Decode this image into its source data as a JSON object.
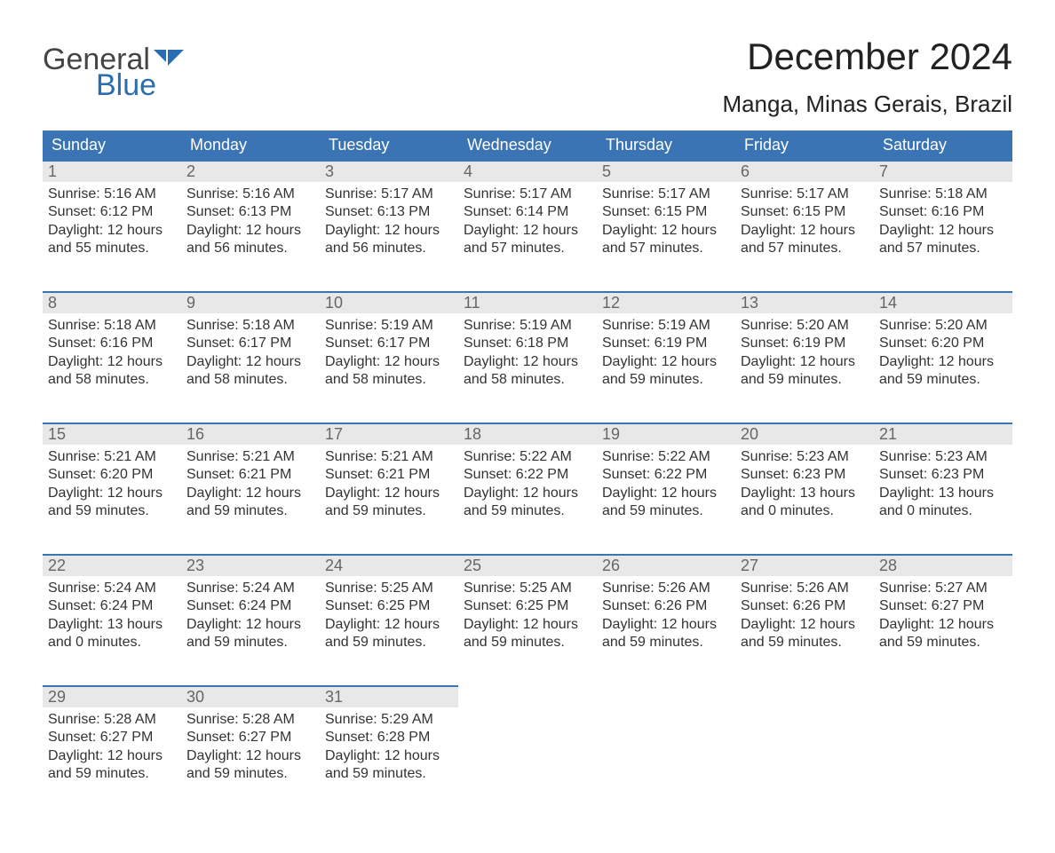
{
  "logo": {
    "word1": "General",
    "word2": "Blue",
    "flag_color": "#2a6db0",
    "text_color_1": "#444444",
    "text_color_2": "#2a6db0"
  },
  "header": {
    "month_title": "December 2024",
    "location": "Manga, Minas Gerais, Brazil"
  },
  "colors": {
    "header_bg": "#3a74b4",
    "header_fg": "#ffffff",
    "daynum_bg": "#e8e8e8",
    "daynum_fg": "#666666",
    "row_border": "#3a74b4",
    "body_text": "#333333"
  },
  "weekdays": [
    "Sunday",
    "Monday",
    "Tuesday",
    "Wednesday",
    "Thursday",
    "Friday",
    "Saturday"
  ],
  "labels": {
    "sunrise": "Sunrise:",
    "sunset": "Sunset:",
    "daylight_prefix": "Daylight:",
    "hours_word": "hours",
    "and_word": "and",
    "minutes_suffix": "minutes."
  },
  "days": [
    {
      "n": 1,
      "sunrise": "5:16 AM",
      "sunset": "6:12 PM",
      "dl_h": 12,
      "dl_m": 55
    },
    {
      "n": 2,
      "sunrise": "5:16 AM",
      "sunset": "6:13 PM",
      "dl_h": 12,
      "dl_m": 56
    },
    {
      "n": 3,
      "sunrise": "5:17 AM",
      "sunset": "6:13 PM",
      "dl_h": 12,
      "dl_m": 56
    },
    {
      "n": 4,
      "sunrise": "5:17 AM",
      "sunset": "6:14 PM",
      "dl_h": 12,
      "dl_m": 57
    },
    {
      "n": 5,
      "sunrise": "5:17 AM",
      "sunset": "6:15 PM",
      "dl_h": 12,
      "dl_m": 57
    },
    {
      "n": 6,
      "sunrise": "5:17 AM",
      "sunset": "6:15 PM",
      "dl_h": 12,
      "dl_m": 57
    },
    {
      "n": 7,
      "sunrise": "5:18 AM",
      "sunset": "6:16 PM",
      "dl_h": 12,
      "dl_m": 57
    },
    {
      "n": 8,
      "sunrise": "5:18 AM",
      "sunset": "6:16 PM",
      "dl_h": 12,
      "dl_m": 58
    },
    {
      "n": 9,
      "sunrise": "5:18 AM",
      "sunset": "6:17 PM",
      "dl_h": 12,
      "dl_m": 58
    },
    {
      "n": 10,
      "sunrise": "5:19 AM",
      "sunset": "6:17 PM",
      "dl_h": 12,
      "dl_m": 58
    },
    {
      "n": 11,
      "sunrise": "5:19 AM",
      "sunset": "6:18 PM",
      "dl_h": 12,
      "dl_m": 58
    },
    {
      "n": 12,
      "sunrise": "5:19 AM",
      "sunset": "6:19 PM",
      "dl_h": 12,
      "dl_m": 59
    },
    {
      "n": 13,
      "sunrise": "5:20 AM",
      "sunset": "6:19 PM",
      "dl_h": 12,
      "dl_m": 59
    },
    {
      "n": 14,
      "sunrise": "5:20 AM",
      "sunset": "6:20 PM",
      "dl_h": 12,
      "dl_m": 59
    },
    {
      "n": 15,
      "sunrise": "5:21 AM",
      "sunset": "6:20 PM",
      "dl_h": 12,
      "dl_m": 59
    },
    {
      "n": 16,
      "sunrise": "5:21 AM",
      "sunset": "6:21 PM",
      "dl_h": 12,
      "dl_m": 59
    },
    {
      "n": 17,
      "sunrise": "5:21 AM",
      "sunset": "6:21 PM",
      "dl_h": 12,
      "dl_m": 59
    },
    {
      "n": 18,
      "sunrise": "5:22 AM",
      "sunset": "6:22 PM",
      "dl_h": 12,
      "dl_m": 59
    },
    {
      "n": 19,
      "sunrise": "5:22 AM",
      "sunset": "6:22 PM",
      "dl_h": 12,
      "dl_m": 59
    },
    {
      "n": 20,
      "sunrise": "5:23 AM",
      "sunset": "6:23 PM",
      "dl_h": 13,
      "dl_m": 0
    },
    {
      "n": 21,
      "sunrise": "5:23 AM",
      "sunset": "6:23 PM",
      "dl_h": 13,
      "dl_m": 0
    },
    {
      "n": 22,
      "sunrise": "5:24 AM",
      "sunset": "6:24 PM",
      "dl_h": 13,
      "dl_m": 0
    },
    {
      "n": 23,
      "sunrise": "5:24 AM",
      "sunset": "6:24 PM",
      "dl_h": 12,
      "dl_m": 59
    },
    {
      "n": 24,
      "sunrise": "5:25 AM",
      "sunset": "6:25 PM",
      "dl_h": 12,
      "dl_m": 59
    },
    {
      "n": 25,
      "sunrise": "5:25 AM",
      "sunset": "6:25 PM",
      "dl_h": 12,
      "dl_m": 59
    },
    {
      "n": 26,
      "sunrise": "5:26 AM",
      "sunset": "6:26 PM",
      "dl_h": 12,
      "dl_m": 59
    },
    {
      "n": 27,
      "sunrise": "5:26 AM",
      "sunset": "6:26 PM",
      "dl_h": 12,
      "dl_m": 59
    },
    {
      "n": 28,
      "sunrise": "5:27 AM",
      "sunset": "6:27 PM",
      "dl_h": 12,
      "dl_m": 59
    },
    {
      "n": 29,
      "sunrise": "5:28 AM",
      "sunset": "6:27 PM",
      "dl_h": 12,
      "dl_m": 59
    },
    {
      "n": 30,
      "sunrise": "5:28 AM",
      "sunset": "6:27 PM",
      "dl_h": 12,
      "dl_m": 59
    },
    {
      "n": 31,
      "sunrise": "5:29 AM",
      "sunset": "6:28 PM",
      "dl_h": 12,
      "dl_m": 59
    }
  ],
  "blanks_before": 0,
  "blanks_after": 4
}
